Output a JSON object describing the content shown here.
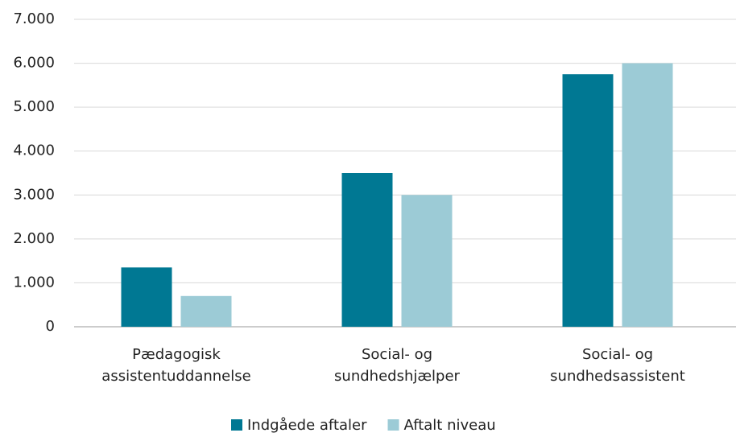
{
  "chart_data": {
    "type": "bar",
    "categories": [
      [
        "Pædagogisk",
        "assistentuddannelse"
      ],
      [
        "Social- og",
        "sundhedshjælper"
      ],
      [
        "Social- og",
        "sundhedsassistent"
      ]
    ],
    "series": [
      {
        "name": "Indgåede aftaler",
        "color": "#007893",
        "values": [
          1350,
          3500,
          5750
        ]
      },
      {
        "name": "Aftalt niveau",
        "color": "#9ccbd6",
        "values": [
          700,
          3000,
          6000
        ]
      }
    ],
    "ylim": [
      0,
      7000
    ],
    "yticks": [
      0,
      {
        "value": 1000,
        "label": "1.000"
      },
      {
        "value": 2000,
        "label": "2.000"
      },
      {
        "value": 3000,
        "label": "3.000"
      },
      {
        "value": 4000,
        "label": "4.000"
      },
      {
        "value": 5000,
        "label": "5.000"
      },
      {
        "value": 6000,
        "label": "6.000"
      },
      {
        "value": 7000,
        "label": "7.000"
      }
    ],
    "grid": true,
    "legend": "bottom"
  }
}
